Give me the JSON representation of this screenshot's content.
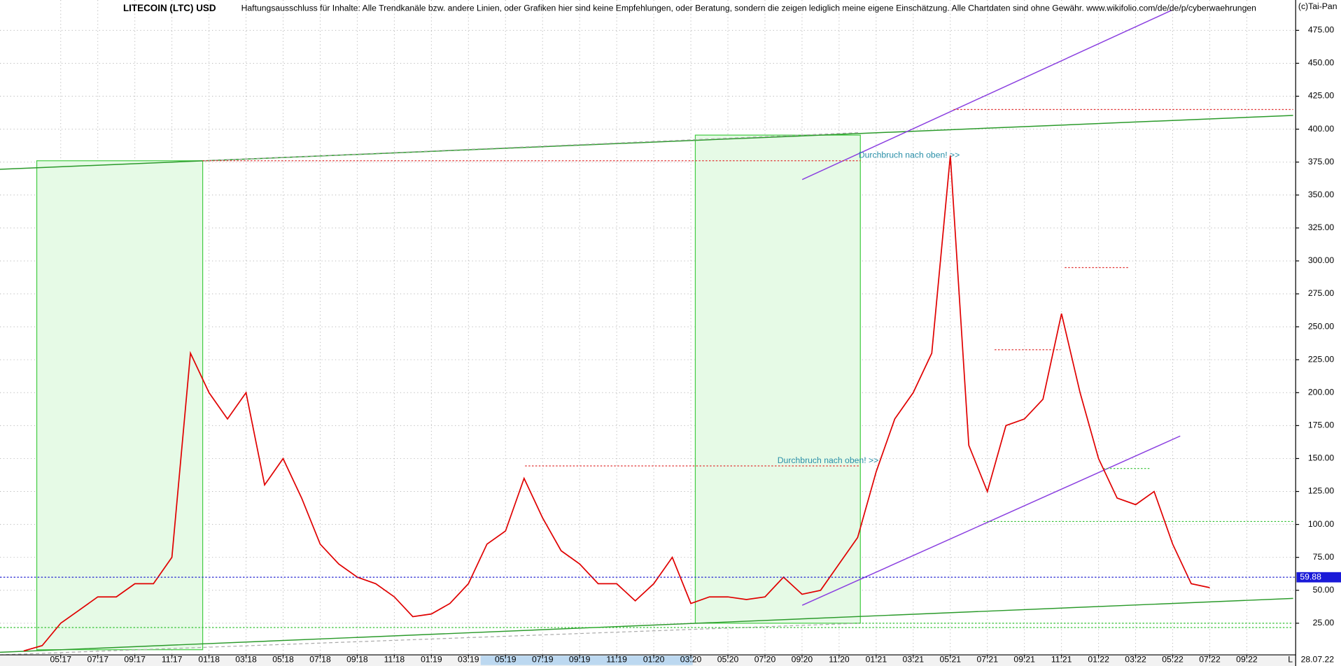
{
  "chart_data": {
    "type": "line",
    "title": "LITECOIN (LTC) USD",
    "subtitle": "Haftungsausschluss für Inhalte: Alle Trendkanäle bzw. andere Linien, oder Grafiken hier sind keine Empfehlungen, oder Beratung, sondern die zeigen lediglich meine eigene Einschätzung. Alle Chartdaten sind ohne Gewähr.  www.wikifolio.com/de/de/p/cyberwaehrungen",
    "source": "(c)Tai-Pan",
    "annotations": [
      "Durchbruch nach oben! >>",
      "Durchbruch nach oben! >>"
    ],
    "last_price": 59.88,
    "last_date": "28.07.22",
    "axis_mode": "L",
    "color": "#e00000",
    "x": [
      "03:17",
      "04:17",
      "05:17",
      "06:17",
      "07:17",
      "08:17",
      "09:17",
      "10:17",
      "11:17",
      "12:17",
      "01:18",
      "02:18",
      "03:18",
      "04:18",
      "05:18",
      "06:18",
      "07:18",
      "08:18",
      "09:18",
      "10:18",
      "11:18",
      "12:18",
      "01:19",
      "02:19",
      "03:19",
      "04:19",
      "05:19",
      "06:19",
      "07:19",
      "08:19",
      "09:19",
      "10:19",
      "11:19",
      "12:19",
      "01:20",
      "02:20",
      "03:20",
      "04:20",
      "05:20",
      "06:20",
      "07:20",
      "08:20",
      "09:20",
      "10:20",
      "11:20",
      "12:20",
      "01:21",
      "02:21",
      "03:21",
      "04:21",
      "05:21",
      "06:21",
      "07:21",
      "08:21",
      "09:21",
      "10:21",
      "11:21",
      "12:21",
      "01:22",
      "02:22",
      "03:22",
      "04:22",
      "05:22",
      "06:22",
      "07:22"
    ],
    "values": [
      4,
      8,
      25,
      35,
      45,
      45,
      55,
      55,
      75,
      230,
      200,
      180,
      200,
      130,
      150,
      120,
      85,
      70,
      60,
      55,
      45,
      30,
      32,
      40,
      55,
      85,
      95,
      135,
      105,
      80,
      70,
      55,
      55,
      42,
      55,
      75,
      40,
      45,
      45,
      43,
      45,
      60,
      47,
      50,
      70,
      90,
      140,
      180,
      200,
      230,
      380,
      160,
      125,
      175,
      180,
      195,
      260,
      200,
      150,
      120,
      115,
      125,
      85,
      55,
      52
    ],
    "xticks": [
      "05:17",
      "07:17",
      "09:17",
      "11:17",
      "01:18",
      "03:18",
      "05:18",
      "07:18",
      "09:18",
      "11:18",
      "01:19",
      "03:19",
      "05:19",
      "07:19",
      "09:19",
      "11:19",
      "01:20",
      "03:20",
      "05:20",
      "07:20",
      "09:20",
      "11:20",
      "01:21",
      "03:21",
      "05:21",
      "07:21",
      "09:21",
      "11:21",
      "01:22",
      "03:22",
      "05:22",
      "07:22",
      "09:22"
    ],
    "ylim": [
      1,
      498
    ],
    "yticks": [
      {
        "value": 25,
        "label": "25.00"
      },
      {
        "value": 50,
        "label": "50.00"
      },
      {
        "value": 75,
        "label": "75.00"
      },
      {
        "value": 100,
        "label": "100.00"
      },
      {
        "value": 125,
        "label": "125.00"
      },
      {
        "value": 150,
        "label": "150.00"
      },
      {
        "value": 175,
        "label": "175.00"
      },
      {
        "value": 200,
        "label": "200.00"
      },
      {
        "value": 225,
        "label": "225.00"
      },
      {
        "value": 250,
        "label": "250.00"
      },
      {
        "value": 275,
        "label": "275.00"
      },
      {
        "value": 300,
        "label": "300.00"
      },
      {
        "value": 325,
        "label": "325.00"
      },
      {
        "value": 350,
        "label": "350.00"
      },
      {
        "value": 375,
        "label": "375.00"
      },
      {
        "value": 400,
        "label": "400.00"
      },
      {
        "value": 425,
        "label": "425.00"
      },
      {
        "value": 450,
        "label": "450.00"
      },
      {
        "value": 475,
        "label": "475.00"
      }
    ],
    "grid": true
  }
}
